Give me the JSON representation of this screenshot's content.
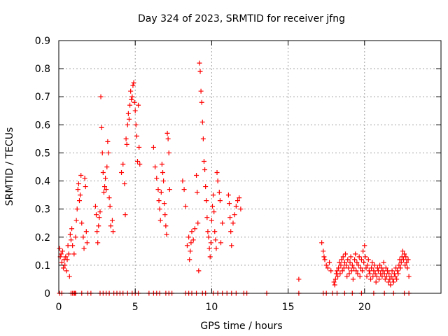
{
  "chart_data": {
    "type": "scatter",
    "title": "Day 324 of 2023, SRMTID for receiver jfng",
    "xlabel": "GPS time / hours",
    "ylabel": "SRMTID / TECUs",
    "xlim": [
      0,
      25
    ],
    "ylim": [
      0,
      0.9
    ],
    "xticks": [
      0,
      5,
      10,
      15,
      20
    ],
    "xtick_labels": [
      "0",
      "5",
      "10",
      "15",
      "20"
    ],
    "yticks": [
      0,
      0.1,
      0.2,
      0.3,
      0.4,
      0.5,
      0.6,
      0.7,
      0.8,
      0.9
    ],
    "ytick_labels": [
      "0",
      "0.1",
      "0.2",
      "0.3",
      "0.4",
      "0.5",
      "0.6",
      "0.7",
      "0.8",
      "0.9"
    ],
    "grid": true,
    "marker": "+",
    "series": [
      {
        "name": "SRMTID",
        "color": "#ff0000",
        "points": [
          [
            0.05,
            0.16
          ],
          [
            0.1,
            0.13
          ],
          [
            0.15,
            0.14
          ],
          [
            0.2,
            0.11
          ],
          [
            0.25,
            0.15
          ],
          [
            0.3,
            0.09
          ],
          [
            0.35,
            0.12
          ],
          [
            0.4,
            0.1
          ],
          [
            0.45,
            0.13
          ],
          [
            0.5,
            0.08
          ],
          [
            0.55,
            0.12
          ],
          [
            0.6,
            0.17
          ],
          [
            0.65,
            0.14
          ],
          [
            0.7,
            0.06
          ],
          [
            0.75,
            0.21
          ],
          [
            0.8,
            0.19
          ],
          [
            0.85,
            0.23
          ],
          [
            0.9,
            0.17
          ],
          [
            1.0,
            0.14
          ],
          [
            1.1,
            0.2
          ],
          [
            1.15,
            0.26
          ],
          [
            1.2,
            0.3
          ],
          [
            1.25,
            0.37
          ],
          [
            1.3,
            0.39
          ],
          [
            1.35,
            0.33
          ],
          [
            1.4,
            0.35
          ],
          [
            1.45,
            0.42
          ],
          [
            1.5,
            0.25
          ],
          [
            1.6,
            0.2
          ],
          [
            1.65,
            0.16
          ],
          [
            1.7,
            0.41
          ],
          [
            1.75,
            0.38
          ],
          [
            1.8,
            0.22
          ],
          [
            1.85,
            0.18
          ],
          [
            2.4,
            0.31
          ],
          [
            2.45,
            0.28
          ],
          [
            2.5,
            0.22
          ],
          [
            2.55,
            0.18
          ],
          [
            2.6,
            0.24
          ],
          [
            2.65,
            0.27
          ],
          [
            2.7,
            0.29
          ],
          [
            2.75,
            0.7
          ],
          [
            2.8,
            0.59
          ],
          [
            2.85,
            0.5
          ],
          [
            2.9,
            0.43
          ],
          [
            2.95,
            0.36
          ],
          [
            3.0,
            0.38
          ],
          [
            3.05,
            0.41
          ],
          [
            3.1,
            0.37
          ],
          [
            3.15,
            0.45
          ],
          [
            3.2,
            0.54
          ],
          [
            3.25,
            0.5
          ],
          [
            3.3,
            0.34
          ],
          [
            3.35,
            0.31
          ],
          [
            3.4,
            0.24
          ],
          [
            3.5,
            0.26
          ],
          [
            3.55,
            0.22
          ],
          [
            4.1,
            0.43
          ],
          [
            4.2,
            0.46
          ],
          [
            4.3,
            0.39
          ],
          [
            4.35,
            0.28
          ],
          [
            4.4,
            0.55
          ],
          [
            4.45,
            0.53
          ],
          [
            4.5,
            0.6
          ],
          [
            4.55,
            0.64
          ],
          [
            4.6,
            0.62
          ],
          [
            4.65,
            0.67
          ],
          [
            4.7,
            0.72
          ],
          [
            4.75,
            0.69
          ],
          [
            4.8,
            0.7
          ],
          [
            4.85,
            0.74
          ],
          [
            4.9,
            0.75
          ],
          [
            4.95,
            0.68
          ],
          [
            5.0,
            0.65
          ],
          [
            5.05,
            0.6
          ],
          [
            5.1,
            0.56
          ],
          [
            5.15,
            0.47
          ],
          [
            5.2,
            0.67
          ],
          [
            5.25,
            0.52
          ],
          [
            5.3,
            0.46
          ],
          [
            6.2,
            0.52
          ],
          [
            6.3,
            0.45
          ],
          [
            6.4,
            0.41
          ],
          [
            6.5,
            0.37
          ],
          [
            6.55,
            0.33
          ],
          [
            6.6,
            0.3
          ],
          [
            6.65,
            0.26
          ],
          [
            6.7,
            0.36
          ],
          [
            6.75,
            0.46
          ],
          [
            6.8,
            0.43
          ],
          [
            6.85,
            0.4
          ],
          [
            6.9,
            0.32
          ],
          [
            6.95,
            0.28
          ],
          [
            7.0,
            0.24
          ],
          [
            7.05,
            0.21
          ],
          [
            7.1,
            0.57
          ],
          [
            7.15,
            0.55
          ],
          [
            7.2,
            0.5
          ],
          [
            7.25,
            0.37
          ],
          [
            8.1,
            0.4
          ],
          [
            8.2,
            0.37
          ],
          [
            8.3,
            0.31
          ],
          [
            8.4,
            0.17
          ],
          [
            8.5,
            0.2
          ],
          [
            8.55,
            0.12
          ],
          [
            8.6,
            0.15
          ],
          [
            8.65,
            0.18
          ],
          [
            8.7,
            0.22
          ],
          [
            8.8,
            0.19
          ],
          [
            8.9,
            0.23
          ],
          [
            9.0,
            0.42
          ],
          [
            9.05,
            0.36
          ],
          [
            9.1,
            0.25
          ],
          [
            9.15,
            0.08
          ],
          [
            9.2,
            0.82
          ],
          [
            9.25,
            0.79
          ],
          [
            9.3,
            0.72
          ],
          [
            9.35,
            0.68
          ],
          [
            9.4,
            0.61
          ],
          [
            9.45,
            0.55
          ],
          [
            9.5,
            0.47
          ],
          [
            9.55,
            0.44
          ],
          [
            9.6,
            0.38
          ],
          [
            9.65,
            0.33
          ],
          [
            9.7,
            0.27
          ],
          [
            9.75,
            0.22
          ],
          [
            9.8,
            0.2
          ],
          [
            9.85,
            0.16
          ],
          [
            9.9,
            0.13
          ],
          [
            9.95,
            0.18
          ],
          [
            10.0,
            0.26
          ],
          [
            10.05,
            0.31
          ],
          [
            10.1,
            0.35
          ],
          [
            10.15,
            0.29
          ],
          [
            10.2,
            0.22
          ],
          [
            10.25,
            0.19
          ],
          [
            10.3,
            0.16
          ],
          [
            10.35,
            0.43
          ],
          [
            10.4,
            0.4
          ],
          [
            10.5,
            0.36
          ],
          [
            10.55,
            0.33
          ],
          [
            10.6,
            0.18
          ],
          [
            10.7,
            0.25
          ],
          [
            11.1,
            0.35
          ],
          [
            11.15,
            0.32
          ],
          [
            11.2,
            0.27
          ],
          [
            11.25,
            0.22
          ],
          [
            11.3,
            0.17
          ],
          [
            11.4,
            0.25
          ],
          [
            11.5,
            0.28
          ],
          [
            11.6,
            0.31
          ],
          [
            11.7,
            0.33
          ],
          [
            11.8,
            0.34
          ],
          [
            11.9,
            0.3
          ],
          [
            15.7,
            0.05
          ],
          [
            17.2,
            0.18
          ],
          [
            17.3,
            0.15
          ],
          [
            17.35,
            0.13
          ],
          [
            17.4,
            0.12
          ],
          [
            17.5,
            0.1
          ],
          [
            17.6,
            0.09
          ],
          [
            17.7,
            0.11
          ],
          [
            17.8,
            0.08
          ],
          [
            18.0,
            0.04
          ],
          [
            18.05,
            0.03
          ],
          [
            18.1,
            0.05
          ],
          [
            18.15,
            0.07
          ],
          [
            18.2,
            0.08
          ],
          [
            18.25,
            0.06
          ],
          [
            18.3,
            0.09
          ],
          [
            18.35,
            0.11
          ],
          [
            18.4,
            0.07
          ],
          [
            18.45,
            0.1
          ],
          [
            18.5,
            0.12
          ],
          [
            18.55,
            0.08
          ],
          [
            18.6,
            0.13
          ],
          [
            18.65,
            0.09
          ],
          [
            18.7,
            0.11
          ],
          [
            18.75,
            0.14
          ],
          [
            18.8,
            0.1
          ],
          [
            18.85,
            0.06
          ],
          [
            18.9,
            0.12
          ],
          [
            18.95,
            0.09
          ],
          [
            19.0,
            0.07
          ],
          [
            19.05,
            0.11
          ],
          [
            19.1,
            0.13
          ],
          [
            19.15,
            0.08
          ],
          [
            19.2,
            0.1
          ],
          [
            19.25,
            0.05
          ],
          [
            19.3,
            0.09
          ],
          [
            19.35,
            0.12
          ],
          [
            19.4,
            0.14
          ],
          [
            19.45,
            0.08
          ],
          [
            19.5,
            0.11
          ],
          [
            19.55,
            0.07
          ],
          [
            19.6,
            0.1
          ],
          [
            19.65,
            0.13
          ],
          [
            19.7,
            0.06
          ],
          [
            19.75,
            0.09
          ],
          [
            19.8,
            0.12
          ],
          [
            19.85,
            0.08
          ],
          [
            19.9,
            0.15
          ],
          [
            19.95,
            0.11
          ],
          [
            20.0,
            0.17
          ],
          [
            20.05,
            0.13
          ],
          [
            20.1,
            0.09
          ],
          [
            20.15,
            0.06
          ],
          [
            20.2,
            0.1
          ],
          [
            20.25,
            0.12
          ],
          [
            20.3,
            0.08
          ],
          [
            20.35,
            0.07
          ],
          [
            20.4,
            0.05
          ],
          [
            20.45,
            0.09
          ],
          [
            20.5,
            0.11
          ],
          [
            20.55,
            0.06
          ],
          [
            20.6,
            0.08
          ],
          [
            20.65,
            0.1
          ],
          [
            20.7,
            0.07
          ],
          [
            20.75,
            0.04
          ],
          [
            20.8,
            0.06
          ],
          [
            20.85,
            0.09
          ],
          [
            20.9,
            0.08
          ],
          [
            20.95,
            0.05
          ],
          [
            21.0,
            0.1
          ],
          [
            21.05,
            0.07
          ],
          [
            21.1,
            0.09
          ],
          [
            21.15,
            0.06
          ],
          [
            21.2,
            0.08
          ],
          [
            21.25,
            0.11
          ],
          [
            21.3,
            0.07
          ],
          [
            21.35,
            0.05
          ],
          [
            21.4,
            0.09
          ],
          [
            21.45,
            0.06
          ],
          [
            21.5,
            0.08
          ],
          [
            21.55,
            0.04
          ],
          [
            21.6,
            0.07
          ],
          [
            21.65,
            0.05
          ],
          [
            21.7,
            0.03
          ],
          [
            21.75,
            0.06
          ],
          [
            21.8,
            0.08
          ],
          [
            21.85,
            0.05
          ],
          [
            21.9,
            0.04
          ],
          [
            21.95,
            0.07
          ],
          [
            22.0,
            0.06
          ],
          [
            22.05,
            0.09
          ],
          [
            22.1,
            0.05
          ],
          [
            22.15,
            0.08
          ],
          [
            22.2,
            0.07
          ],
          [
            22.25,
            0.1
          ],
          [
            22.3,
            0.12
          ],
          [
            22.35,
            0.09
          ],
          [
            22.4,
            0.11
          ],
          [
            22.45,
            0.13
          ],
          [
            22.5,
            0.15
          ],
          [
            22.55,
            0.12
          ],
          [
            22.6,
            0.14
          ],
          [
            22.65,
            0.1
          ],
          [
            22.7,
            0.13
          ],
          [
            22.75,
            0.11
          ],
          [
            22.8,
            0.09
          ],
          [
            22.85,
            0.12
          ],
          [
            22.9,
            0.06
          ],
          [
            0.05,
            0
          ],
          [
            0.2,
            0
          ],
          [
            0.8,
            0
          ],
          [
            0.9,
            0
          ],
          [
            1.0,
            0
          ],
          [
            1.05,
            0
          ],
          [
            1.1,
            0
          ],
          [
            1.5,
            0
          ],
          [
            1.9,
            0
          ],
          [
            2.1,
            0
          ],
          [
            2.7,
            0
          ],
          [
            2.9,
            0
          ],
          [
            3.1,
            0
          ],
          [
            3.3,
            0
          ],
          [
            3.6,
            0
          ],
          [
            3.8,
            0
          ],
          [
            4.0,
            0
          ],
          [
            4.2,
            0
          ],
          [
            4.5,
            0
          ],
          [
            4.8,
            0
          ],
          [
            5.0,
            0
          ],
          [
            5.2,
            0
          ],
          [
            5.9,
            0
          ],
          [
            6.2,
            0
          ],
          [
            6.4,
            0
          ],
          [
            6.6,
            0
          ],
          [
            7.0,
            0
          ],
          [
            7.2,
            0
          ],
          [
            7.4,
            0
          ],
          [
            8.3,
            0
          ],
          [
            8.5,
            0
          ],
          [
            8.7,
            0
          ],
          [
            9.0,
            0
          ],
          [
            9.4,
            0
          ],
          [
            9.6,
            0
          ],
          [
            10.1,
            0
          ],
          [
            10.4,
            0
          ],
          [
            10.7,
            0
          ],
          [
            11.0,
            0
          ],
          [
            11.3,
            0
          ],
          [
            11.6,
            0
          ],
          [
            12.1,
            0
          ],
          [
            12.3,
            0
          ],
          [
            13.6,
            0
          ],
          [
            15.7,
            0
          ],
          [
            17.3,
            0
          ],
          [
            17.5,
            0
          ],
          [
            17.9,
            0
          ],
          [
            18.2,
            0
          ],
          [
            18.7,
            0
          ],
          [
            19.2,
            0
          ],
          [
            19.8,
            0
          ],
          [
            20.6,
            0
          ],
          [
            21.3,
            0
          ],
          [
            21.9,
            0
          ],
          [
            22.6,
            0
          ],
          [
            22.9,
            0
          ]
        ]
      }
    ]
  }
}
